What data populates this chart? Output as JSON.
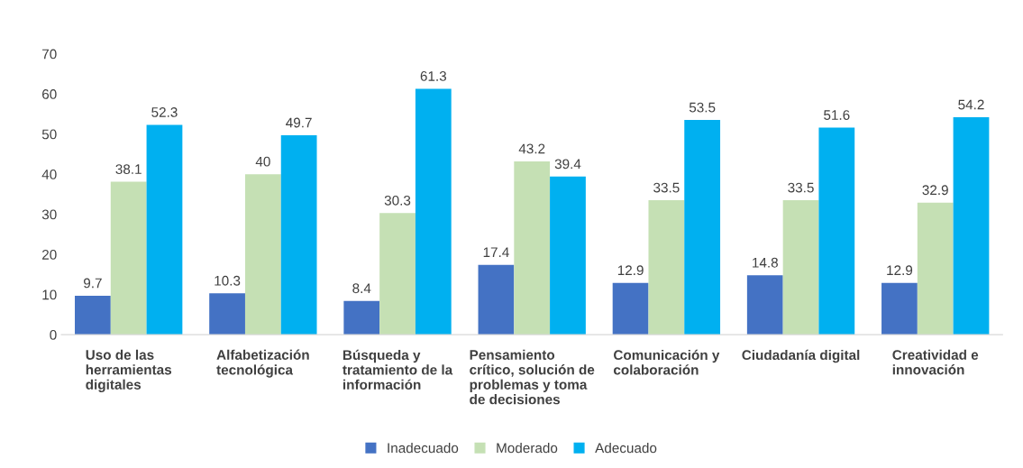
{
  "chart_data": {
    "type": "bar",
    "categories": [
      "Uso de las\nherramientas\ndigitales",
      "Alfabetización\ntecnológica",
      "Búsqueda y\ntratamiento de la\ninformación",
      "Pensamiento\ncrítico, solución de\nproblemas y toma\nde decisiones",
      "Comunicación y\ncolaboración",
      "Ciudadanía digital",
      "Creatividad e\ninnovación"
    ],
    "series": [
      {
        "name": "Inadecuado",
        "color": "#4472c4",
        "values": [
          9.7,
          10.3,
          8.4,
          17.4,
          12.9,
          14.8,
          12.9
        ]
      },
      {
        "name": "Moderado",
        "color": "#c5e0b4",
        "values": [
          38.1,
          40,
          30.3,
          43.2,
          33.5,
          33.5,
          32.9
        ]
      },
      {
        "name": "Adecuado",
        "color": "#00b0f0",
        "values": [
          52.3,
          49.7,
          61.3,
          39.4,
          53.5,
          51.6,
          54.2
        ]
      }
    ],
    "ylim": [
      0,
      70
    ],
    "yticks": [
      0,
      10,
      20,
      30,
      40,
      50,
      60,
      70
    ],
    "data_labels": true,
    "legend": "bottom",
    "grid": false
  }
}
